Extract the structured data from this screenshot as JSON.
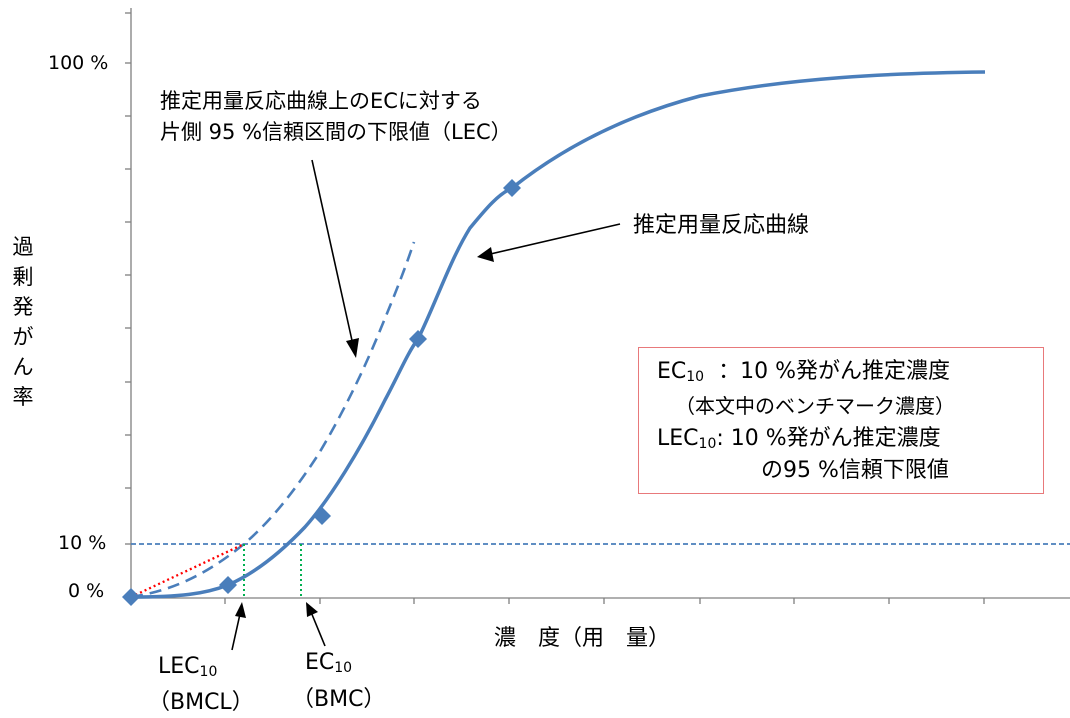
{
  "y_axis": {
    "title": "過剰発がん率",
    "title_chars": [
      "過",
      "剰",
      "発",
      "が",
      "ん",
      "率"
    ],
    "ticks": [
      "100 %",
      "10 %",
      "0 %"
    ]
  },
  "x_axis": {
    "title": "濃　度（用　量）"
  },
  "annotations": {
    "lec_curve": [
      "推定用量反応曲線上のECに対する",
      "片側 95 %信頼区間の下限値（LEC）"
    ],
    "ec_curve": "推定用量反応曲線",
    "lec10_label": {
      "main": "LEC",
      "sub": "10",
      "paren": "（BMCL）"
    },
    "ec10_label": {
      "main": "EC",
      "sub": "10",
      "paren": "（BMC）"
    }
  },
  "legend": {
    "ec10_name": "EC",
    "ec10_sub": "10",
    "ec10_desc": "：10 %発がん推定濃度",
    "ec10_note": "（本文中のベンチマーク濃度）",
    "lec10_name": "LEC",
    "lec10_sub": "10",
    "lec10_desc": ": 10 %発がん推定濃度",
    "lec10_note": "の95 %信頼下限値"
  },
  "chart_data": {
    "type": "line",
    "ylim": [
      0,
      100
    ],
    "series": [
      {
        "style": "solid-with-diamond-markers",
        "color": "#4a7ebb"
      },
      {
        "style": "dashed",
        "color": "#4a7ebb"
      }
    ],
    "reference_line": {
      "y": 10,
      "style": "dashed",
      "color": "#4a7ebb"
    },
    "colors": {
      "curve": "#4a7ebb",
      "lec_slope": "#ff0000",
      "drop_lines": "#00b050",
      "legend_border": "#e8797b"
    }
  }
}
